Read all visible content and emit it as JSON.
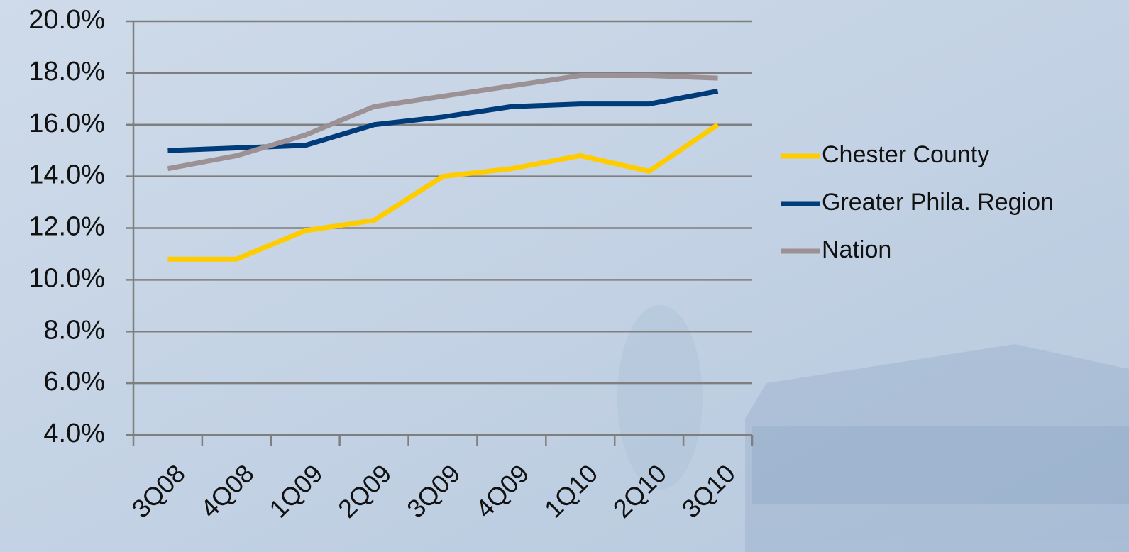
{
  "chart_data": {
    "type": "line",
    "categories": [
      "3Q08",
      "4Q08",
      "1Q09",
      "2Q09",
      "3Q09",
      "4Q09",
      "1Q10",
      "2Q10",
      "3Q10"
    ],
    "series": [
      {
        "name": "Chester County",
        "color": "#ffcc00",
        "values": [
          10.8,
          10.8,
          11.9,
          12.3,
          14.0,
          14.3,
          14.8,
          14.2,
          16.0
        ]
      },
      {
        "name": "Greater Phila. Region",
        "color": "#003b7a",
        "values": [
          15.0,
          15.1,
          15.2,
          16.0,
          16.3,
          16.7,
          16.8,
          16.8,
          17.3
        ]
      },
      {
        "name": "Nation",
        "color": "#9c9295",
        "values": [
          14.3,
          14.8,
          15.6,
          16.7,
          17.1,
          17.5,
          17.9,
          17.9,
          17.8
        ]
      }
    ],
    "ylim": [
      4,
      20
    ],
    "yticks": [
      {
        "value": 4,
        "label": "4.0%"
      },
      {
        "value": 6,
        "label": "6.0%"
      },
      {
        "value": 8,
        "label": "8.0%"
      },
      {
        "value": 10,
        "label": "10.0%"
      },
      {
        "value": 12,
        "label": "12.0%"
      },
      {
        "value": 14,
        "label": "14.0%"
      },
      {
        "value": 16,
        "label": "16.0%"
      },
      {
        "value": 18,
        "label": "18.0%"
      },
      {
        "value": 20,
        "label": "20.0%"
      }
    ],
    "grid": true,
    "legend": "right"
  }
}
